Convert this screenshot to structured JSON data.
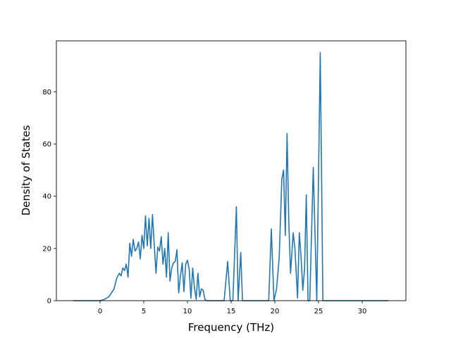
{
  "chart_data": {
    "type": "line",
    "title": "",
    "xlabel": "Frequency (THz)",
    "ylabel": "Density of States",
    "xlim": [
      -5.0,
      35.0
    ],
    "ylim": [
      0,
      99.5
    ],
    "xticks": [
      0,
      5,
      10,
      15,
      20,
      25,
      30
    ],
    "yticks": [
      0,
      20,
      40,
      60,
      80
    ],
    "grid": false,
    "legend": "none",
    "line_color": "#1f77b4",
    "series": [
      {
        "x": [
          -3.1,
          -2.0,
          -1.0,
          0.0,
          0.5,
          1.0,
          1.3,
          1.6,
          1.9,
          2.2,
          2.4,
          2.6,
          2.8,
          3.0,
          3.2,
          3.4,
          3.6,
          3.8,
          4.0,
          4.2,
          4.4,
          4.6,
          4.8,
          5.0,
          5.2,
          5.4,
          5.6,
          5.8,
          6.0,
          6.2,
          6.4,
          6.6,
          6.8,
          7.0,
          7.2,
          7.4,
          7.6,
          7.8,
          8.0,
          8.2,
          8.4,
          8.6,
          8.8,
          9.0,
          9.2,
          9.4,
          9.6,
          9.8,
          10.0,
          10.2,
          10.4,
          10.6,
          10.8,
          11.0,
          11.2,
          11.4,
          11.6,
          11.8,
          12.0,
          12.2,
          12.4,
          14.2,
          14.6,
          14.9,
          15.2,
          15.6,
          15.8,
          16.1,
          16.3,
          19.3,
          19.6,
          19.9,
          20.2,
          20.5,
          20.8,
          21.0,
          21.2,
          21.4,
          21.6,
          21.8,
          22.1,
          22.3,
          22.6,
          22.8,
          23.0,
          23.2,
          23.4,
          23.6,
          23.8,
          24.0,
          24.4,
          24.8,
          25.2,
          25.5,
          25.8,
          26.2,
          33.0
        ],
        "y": [
          0,
          0,
          0,
          0,
          0.5,
          1.5,
          3.0,
          4.5,
          8.5,
          10.5,
          9.5,
          12.5,
          11.5,
          14.0,
          9.0,
          22.0,
          17.0,
          23.5,
          19.0,
          20.0,
          22.5,
          16.0,
          25.0,
          20.0,
          32.5,
          21.0,
          31.5,
          20.0,
          33.0,
          21.5,
          10.5,
          20.5,
          19.0,
          24.5,
          14.0,
          20.0,
          9.0,
          26.0,
          7.5,
          12.5,
          14.5,
          15.0,
          19.5,
          3.0,
          9.5,
          14.5,
          3.5,
          14.0,
          15.5,
          12.0,
          1.0,
          12.5,
          5.0,
          0.5,
          10.5,
          1.5,
          4.5,
          4.0,
          0.5,
          0,
          0,
          0,
          15.0,
          0,
          0,
          36.0,
          0,
          18.5,
          0,
          0,
          27.5,
          0,
          4.5,
          16.5,
          46.5,
          50.0,
          25.0,
          64.0,
          30.0,
          10.5,
          26.0,
          20.0,
          1.0,
          26.0,
          17.0,
          4.0,
          12.0,
          40.5,
          0,
          0,
          51.0,
          0,
          95.0,
          0,
          0,
          0,
          0
        ]
      }
    ]
  }
}
